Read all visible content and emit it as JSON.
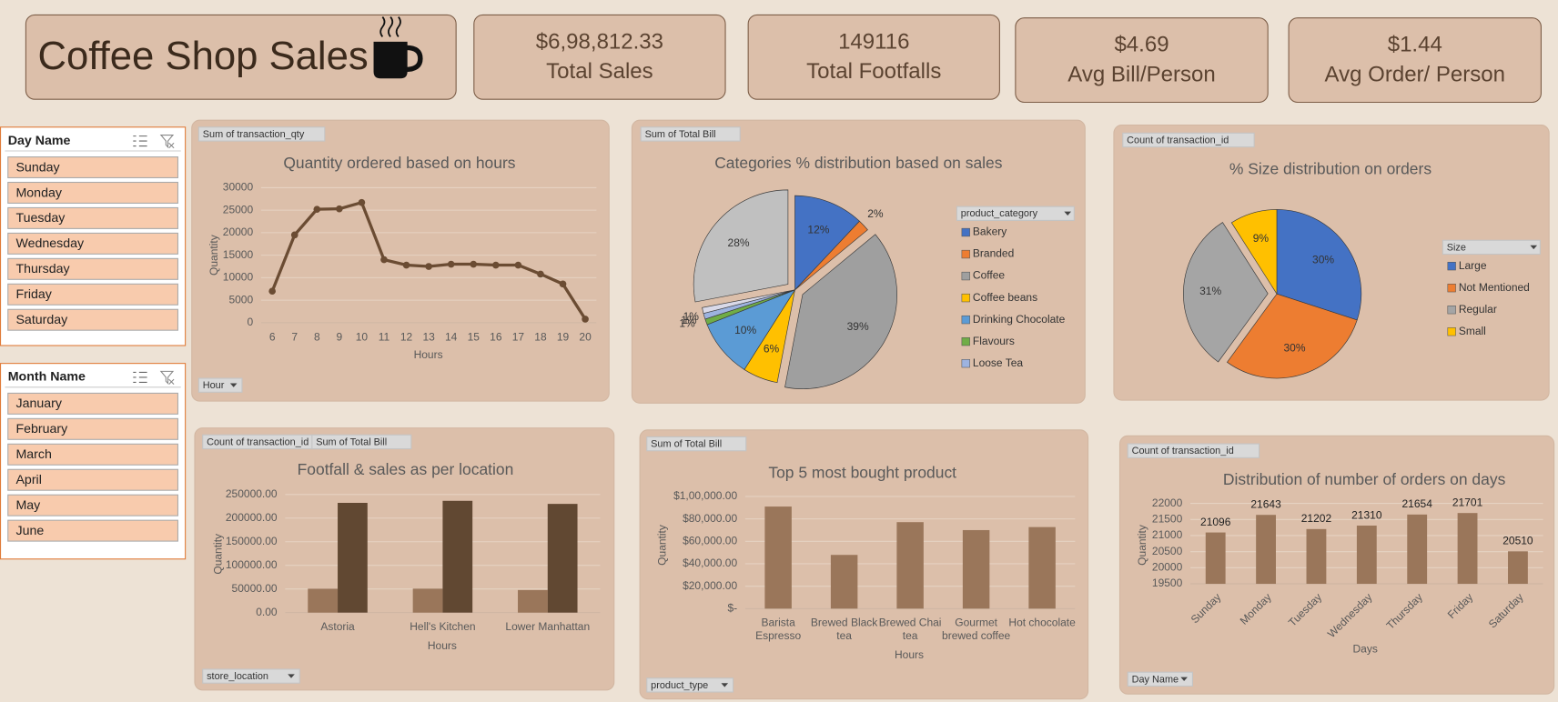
{
  "header": {
    "title": "Coffee Shop Sales",
    "kpis": [
      {
        "value": "$6,98,812.33",
        "label": "Total Sales"
      },
      {
        "value": "149116",
        "label": "Total Footfalls"
      },
      {
        "value": "$4.69",
        "label": "Avg Bill/Person"
      },
      {
        "value": "$1.44",
        "label": "Avg Order/ Person"
      }
    ]
  },
  "slicers": [
    {
      "title": "Day Name",
      "items": [
        "Sunday",
        "Monday",
        "Tuesday",
        "Wednesday",
        "Thursday",
        "Friday",
        "Saturday"
      ]
    },
    {
      "title": "Month Name",
      "items": [
        "January",
        "February",
        "March",
        "April",
        "May",
        "June"
      ]
    }
  ],
  "chart_data": [
    {
      "type": "line",
      "title": "Quantity ordered based on hours",
      "x_label": "Hours",
      "y_label": "Quantity",
      "filter": "Hour",
      "categories": [
        "6",
        "7",
        "8",
        "9",
        "10",
        "11",
        "12",
        "13",
        "14",
        "15",
        "16",
        "17",
        "18",
        "19",
        "20"
      ],
      "series": [
        {
          "name": "Sum of transaction_qty",
          "color": "#6b4c33",
          "values": [
            7000,
            19500,
            25200,
            25300,
            26700,
            14000,
            12800,
            12500,
            13000,
            13000,
            12800,
            12800,
            10800,
            8600,
            800
          ]
        }
      ],
      "ylim": [
        0,
        30000
      ],
      "yticks": [
        0,
        5000,
        10000,
        15000,
        20000,
        25000,
        30000
      ],
      "grid": true
    },
    {
      "type": "pie",
      "title": "Categories % distribution based on sales",
      "value_field": "Sum of Total Bill",
      "legend_title": "product_category",
      "categories": [
        "Bakery",
        "Branded",
        "Coffee",
        "Coffee beans",
        "Drinking Chocolate",
        "Flavours",
        "Loose Tea",
        null,
        null
      ],
      "values": [
        12,
        2,
        39,
        6,
        10,
        1,
        1,
        1,
        28
      ],
      "value_labels": [
        "12%",
        "2%",
        "39%",
        "6%",
        "10%",
        "1%",
        "1%",
        "1%",
        "28%"
      ],
      "colors": [
        "#4472c4",
        "#ed7d31",
        "#9f9f9f",
        "#ffc000",
        "#5b9bd5",
        "#70ad47",
        "#9db3e0",
        "#d9d9e8",
        "#c0c0c0"
      ]
    },
    {
      "type": "pie",
      "title": "% Size distribution on orders",
      "value_field": "Count of transaction_id",
      "legend_title": "Size",
      "categories": [
        "Large",
        "Not Mentioned",
        "Regular",
        "Small"
      ],
      "values": [
        30,
        30,
        31,
        9
      ],
      "value_labels": [
        "30%",
        "30%",
        "31%",
        "9%"
      ],
      "colors": [
        "#4472c4",
        "#ed7d31",
        "#a5a5a5",
        "#ffc000"
      ]
    },
    {
      "type": "bar",
      "title": "Footfall & sales as per location",
      "x_label": "Hours",
      "y_label": "Quantity",
      "filter": "store_location",
      "categories": [
        "Astoria",
        "Hell's Kitchen",
        "Lower Manhattan"
      ],
      "series": [
        {
          "name": "Count of transaction_id",
          "color": "#9a765a",
          "values": [
            50599,
            50735,
            47782
          ]
        },
        {
          "name": "Sum of Total Bill",
          "color": "#614832",
          "values": [
            232244,
            236511,
            230057
          ]
        }
      ],
      "ylim": [
        0,
        250000
      ],
      "yticks": [
        {
          "value": 0,
          "label": "0.00"
        },
        {
          "value": 50000,
          "label": "50000.00"
        },
        {
          "value": 100000,
          "label": "100000.00"
        },
        {
          "value": 150000,
          "label": "150000.00"
        },
        {
          "value": 200000,
          "label": "200000.00"
        },
        {
          "value": 250000,
          "label": "250000.00"
        }
      ],
      "grid": true
    },
    {
      "type": "bar",
      "title": "Top 5 most bought product",
      "x_label": "Hours",
      "y_label": "Quantity",
      "filter": "product_type",
      "categories": [
        "Barista Espresso",
        "Brewed Black tea",
        "Brewed Chai tea",
        "Gourmet brewed coffee",
        "Hot chocolate"
      ],
      "series": [
        {
          "name": "Sum of Total Bill",
          "color": "#9a765a",
          "values": [
            91000,
            47900,
            77100,
            70000,
            72700
          ]
        }
      ],
      "ylim": [
        0,
        100000
      ],
      "yticks": [
        {
          "value": 0,
          "label": "$-"
        },
        {
          "value": 20000,
          "label": "$20,000.00"
        },
        {
          "value": 40000,
          "label": "$40,000.00"
        },
        {
          "value": 60000,
          "label": "$60,000.00"
        },
        {
          "value": 80000,
          "label": "$80,000.00"
        },
        {
          "value": 100000,
          "label": "$1,00,000.00"
        }
      ],
      "grid": true
    },
    {
      "type": "bar",
      "title": "Distribution of number of orders on days",
      "x_label": "Days",
      "y_label": "Quantity",
      "filter": "Day Name",
      "categories": [
        "Sunday",
        "Monday",
        "Tuesday",
        "Wednesday",
        "Thursday",
        "Friday",
        "Saturday"
      ],
      "series": [
        {
          "name": "Count of transaction_id",
          "color": "#9a765a",
          "values": [
            21096,
            21643,
            21202,
            21310,
            21654,
            21701,
            20510
          ]
        }
      ],
      "ylim": [
        19500,
        22000
      ],
      "yticks": [
        19500,
        20000,
        20500,
        21000,
        21500,
        22000
      ],
      "grid": true,
      "data_labels": true
    }
  ]
}
